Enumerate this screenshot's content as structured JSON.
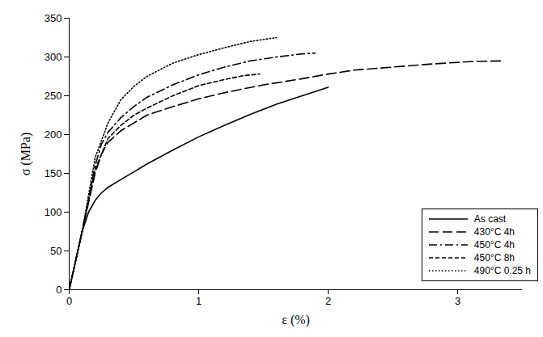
{
  "chart_data": {
    "type": "line",
    "x_label": "ε (%)",
    "y_label": "σ (MPa)",
    "xlim": [
      0,
      3.5
    ],
    "xticks": [
      0,
      1,
      2,
      3
    ],
    "ylim": [
      0,
      350
    ],
    "yticks": [
      0,
      50,
      100,
      150,
      200,
      250,
      300,
      350
    ],
    "grid": false,
    "legend": "lower right",
    "series": [
      {
        "name": "As cast",
        "color": "#000000",
        "line_style": "solid",
        "x": [
          0,
          0.1,
          0.15,
          0.2,
          0.25,
          0.3,
          0.4,
          0.5,
          0.6,
          0.8,
          1.0,
          1.2,
          1.4,
          1.6,
          1.8,
          2.0
        ],
        "values": [
          0,
          75,
          100,
          115,
          125,
          132,
          142,
          152,
          162,
          180,
          197,
          212,
          226,
          239,
          250,
          261
        ]
      },
      {
        "name": "430°C 4h",
        "color": "#000000",
        "line_style": "long-dash",
        "x": [
          0,
          0.1,
          0.2,
          0.25,
          0.3,
          0.4,
          0.5,
          0.6,
          0.8,
          1.0,
          1.2,
          1.5,
          1.8,
          2.0,
          2.2,
          2.5,
          2.8,
          3.1,
          3.35
        ],
        "values": [
          0,
          75,
          150,
          175,
          190,
          205,
          215,
          225,
          236,
          246,
          254,
          264,
          272,
          278,
          283,
          287,
          291,
          294,
          295
        ]
      },
      {
        "name": "450°C 4h",
        "color": "#000000",
        "line_style": "dash-dot",
        "x": [
          0,
          0.1,
          0.2,
          0.25,
          0.3,
          0.4,
          0.5,
          0.6,
          0.8,
          1.0,
          1.2,
          1.4,
          1.6,
          1.8,
          1.9
        ],
        "values": [
          0,
          75,
          160,
          188,
          203,
          222,
          236,
          248,
          264,
          277,
          287,
          295,
          300,
          304,
          305
        ]
      },
      {
        "name": "450°C 8h",
        "color": "#000000",
        "line_style": "short-dash",
        "x": [
          0,
          0.1,
          0.2,
          0.3,
          0.4,
          0.5,
          0.6,
          0.8,
          1.0,
          1.2,
          1.35,
          1.47
        ],
        "values": [
          0,
          75,
          155,
          195,
          212,
          225,
          234,
          250,
          263,
          271,
          276,
          278
        ]
      },
      {
        "name": "490°C 0.25 h",
        "color": "#000000",
        "line_style": "dotted",
        "x": [
          0,
          0.1,
          0.2,
          0.3,
          0.4,
          0.5,
          0.6,
          0.8,
          1.0,
          1.2,
          1.4,
          1.6
        ],
        "values": [
          0,
          75,
          170,
          215,
          245,
          262,
          275,
          292,
          303,
          312,
          320,
          325
        ]
      }
    ]
  }
}
